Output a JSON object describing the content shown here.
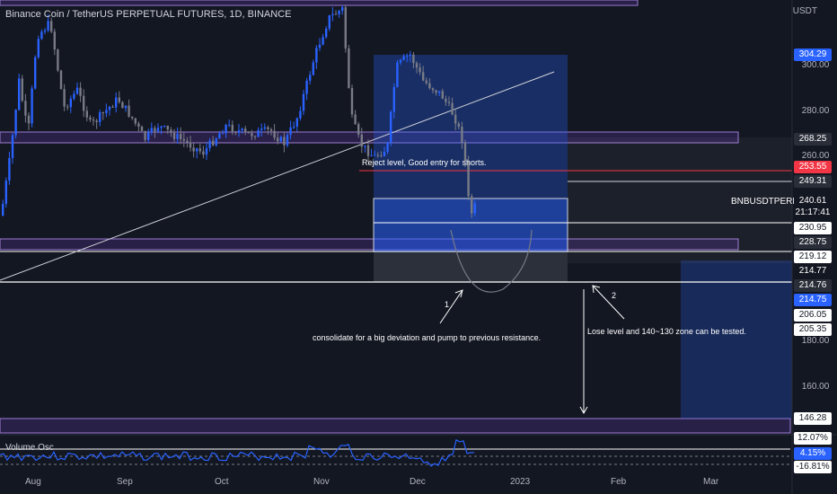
{
  "header": {
    "title": "Binance Coin / TetherUS PERPETUAL FUTURES, 1D, BINANCE"
  },
  "axis": {
    "currency": "USDT",
    "y_ticks": [
      "300.00",
      "280.00",
      "260.00",
      "180.00",
      "160.00"
    ],
    "x_ticks": [
      "Aug",
      "Sep",
      "Oct",
      "Nov",
      "Dec",
      "2023",
      "Feb",
      "Mar"
    ]
  },
  "price_badges": [
    {
      "label": "304.29",
      "color": "#2962ff"
    },
    {
      "label": "268.25",
      "color": "#2a2e39"
    },
    {
      "label": "253.55",
      "color": "#f23645"
    },
    {
      "label": "249.31",
      "color": "#2a2e39"
    },
    {
      "label": "240.61",
      "color": "#131722"
    },
    {
      "label": "21:17:41",
      "color": "#131722"
    },
    {
      "label": "230.95",
      "color": "#ffffff"
    },
    {
      "label": "228.75",
      "color": "#2a2e39"
    },
    {
      "label": "219.12",
      "color": "#ffffff"
    },
    {
      "label": "214.77",
      "color": "#131722"
    },
    {
      "label": "214.76",
      "color": "#2a2e39"
    },
    {
      "label": "214.75",
      "color": "#2962ff"
    },
    {
      "label": "206.05",
      "color": "#ffffff"
    },
    {
      "label": "205.35",
      "color": "#ffffff"
    },
    {
      "label": "146.28",
      "color": "#ffffff"
    }
  ],
  "symbol_label": "BNBUSDTPERP",
  "annotations": {
    "reject": "Reject level, Good entry for shorts.",
    "consolidate": "consolidate for a big deviation and pump to previous resistance.",
    "lose": "Lose level and 140~130 zone can be tested.",
    "num1": "1",
    "num2": "2"
  },
  "oscillator": {
    "title": "Volume Osc",
    "labels": [
      "12.07%",
      "4.15%",
      "-16.81%"
    ]
  },
  "chart_data": {
    "type": "candlestick",
    "title": "Binance Coin / TetherUS PERPETUAL FUTURES, 1D, BINANCE",
    "y_unit": "USDT",
    "x_ticks": [
      "Aug",
      "Sep",
      "Oct",
      "Nov",
      "Dec",
      "2023",
      "Feb",
      "Mar"
    ],
    "y_ticks": [
      300,
      280,
      260,
      180,
      160
    ],
    "last_price": 240.61,
    "horizontal_levels": [
      268.25,
      253.55,
      249.31,
      230.95,
      228.75,
      219.12,
      214.76,
      206.05,
      205.35,
      146.28
    ],
    "approx_closes": [
      {
        "x": "Aug",
        "y": 310
      },
      {
        "x": "Sep",
        "y": 285
      },
      {
        "x": "Oct",
        "y": 278
      },
      {
        "x": "Nov",
        "y": 300
      },
      {
        "x": "Nov",
        "y": 275
      },
      {
        "x": "Dec",
        "y": 295
      },
      {
        "x": "Dec",
        "y": 282
      },
      {
        "x": "Dec",
        "y": 240.61
      }
    ]
  }
}
